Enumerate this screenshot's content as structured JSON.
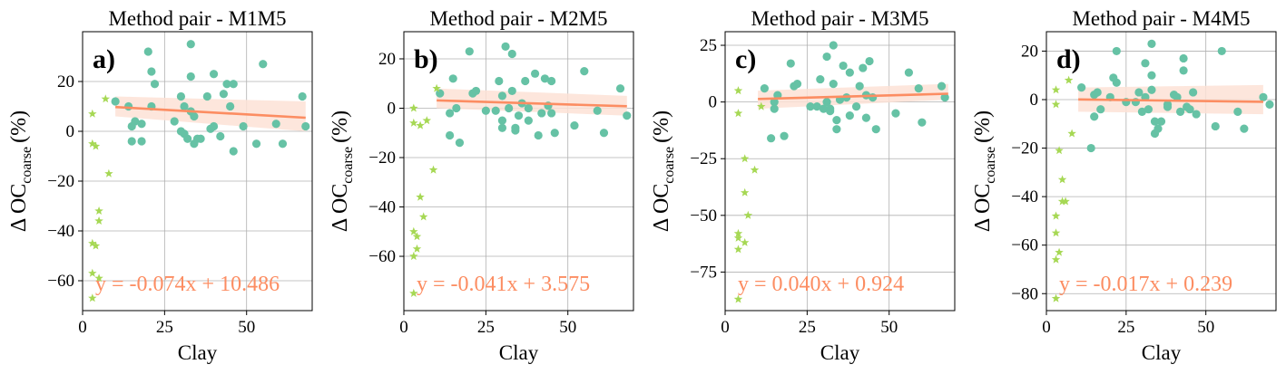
{
  "figure": {
    "colors": {
      "dots": "#66c2a5",
      "stars": "#a6d854",
      "line": "#fc8d62",
      "band": "#fde2d6",
      "grid": "#b0b0b0"
    }
  },
  "chart_data": [
    {
      "type": "scatter",
      "title": "Method pair - M1M5",
      "panel_label": "a)",
      "xlabel": "Clay",
      "ylabel_main": "Δ OC",
      "ylabel_sub": "coarse",
      "ylabel_unit": "(%)",
      "xlim": [
        0,
        70
      ],
      "ylim": [
        -72,
        40
      ],
      "xticks": [
        0,
        25,
        50
      ],
      "yticks": [
        -60,
        -40,
        -20,
        0,
        20
      ],
      "equation": "y = -0.074x + 10.486",
      "fit": {
        "slope": -0.074,
        "intercept": 10.486,
        "x_range": [
          10,
          68
        ],
        "band_low": [
          6,
          0
        ],
        "band_high": [
          14,
          12
        ]
      },
      "grid": true,
      "series": [
        {
          "marker": "dot",
          "points": [
            [
              10,
              12
            ],
            [
              14,
              10
            ],
            [
              15,
              2
            ],
            [
              16,
              4
            ],
            [
              15,
              -4
            ],
            [
              18,
              -4
            ],
            [
              18,
              3
            ],
            [
              20,
              32
            ],
            [
              21,
              24
            ],
            [
              22,
              19
            ],
            [
              21,
              10
            ],
            [
              28,
              4
            ],
            [
              30,
              14
            ],
            [
              30,
              0
            ],
            [
              31,
              -1
            ],
            [
              31,
              10
            ],
            [
              32,
              -3
            ],
            [
              33,
              8
            ],
            [
              33,
              22
            ],
            [
              33,
              35
            ],
            [
              34,
              6
            ],
            [
              34,
              -5
            ],
            [
              35,
              -3
            ],
            [
              36,
              -3
            ],
            [
              38,
              14
            ],
            [
              39,
              1
            ],
            [
              40,
              23
            ],
            [
              40,
              2
            ],
            [
              42,
              -2
            ],
            [
              43,
              15
            ],
            [
              44,
              19
            ],
            [
              45,
              10
            ],
            [
              46,
              19
            ],
            [
              46,
              -8
            ],
            [
              49,
              2
            ],
            [
              53,
              -5
            ],
            [
              55,
              27
            ],
            [
              59,
              3
            ],
            [
              61,
              -5
            ],
            [
              67,
              14
            ],
            [
              68,
              2
            ]
          ]
        },
        {
          "marker": "star",
          "points": [
            [
              3,
              7
            ],
            [
              3,
              -5
            ],
            [
              4,
              -6
            ],
            [
              5,
              -32
            ],
            [
              5,
              -36
            ],
            [
              3,
              -45
            ],
            [
              4,
              -46
            ],
            [
              3,
              -57
            ],
            [
              3,
              -67
            ],
            [
              5,
              -59
            ],
            [
              7,
              13
            ],
            [
              8,
              -17
            ]
          ]
        }
      ]
    },
    {
      "type": "scatter",
      "title": "Method pair - M2M5",
      "panel_label": "b)",
      "xlabel": "Clay",
      "ylabel_main": "Δ OC",
      "ylabel_sub": "coarse",
      "ylabel_unit": "(%)",
      "xlim": [
        0,
        70
      ],
      "ylim": [
        -82,
        31
      ],
      "xticks": [
        0,
        25,
        50
      ],
      "yticks": [
        -60,
        -40,
        -20,
        0,
        20
      ],
      "equation": "y = -0.041x + 3.575",
      "fit": {
        "slope": -0.041,
        "intercept": 3.575,
        "x_range": [
          10,
          68
        ],
        "band_low": [
          0,
          -3
        ],
        "band_high": [
          8,
          5
        ]
      },
      "grid": true,
      "series": [
        {
          "marker": "dot",
          "points": [
            [
              11,
              6
            ],
            [
              14,
              -11
            ],
            [
              14,
              -2
            ],
            [
              15,
              12
            ],
            [
              16,
              0
            ],
            [
              17,
              -14
            ],
            [
              20,
              23
            ],
            [
              21,
              6
            ],
            [
              22,
              7
            ],
            [
              25,
              -1
            ],
            [
              28,
              -1
            ],
            [
              29,
              11
            ],
            [
              30,
              -8
            ],
            [
              30,
              5
            ],
            [
              30,
              -5
            ],
            [
              31,
              25
            ],
            [
              32,
              0
            ],
            [
              33,
              7
            ],
            [
              33,
              22
            ],
            [
              34,
              -9
            ],
            [
              34,
              -8
            ],
            [
              35,
              -3
            ],
            [
              36,
              2
            ],
            [
              37,
              11
            ],
            [
              38,
              0
            ],
            [
              38,
              -5
            ],
            [
              40,
              14
            ],
            [
              41,
              -11
            ],
            [
              42,
              -2
            ],
            [
              43,
              12
            ],
            [
              44,
              1
            ],
            [
              45,
              -2
            ],
            [
              45,
              11
            ],
            [
              46,
              -10
            ],
            [
              52,
              -7
            ],
            [
              55,
              15
            ],
            [
              59,
              -1
            ],
            [
              61,
              -10
            ],
            [
              66,
              8
            ],
            [
              68,
              -3
            ]
          ]
        },
        {
          "marker": "star",
          "points": [
            [
              3,
              0
            ],
            [
              3,
              -6
            ],
            [
              5,
              -7
            ],
            [
              5,
              -36
            ],
            [
              6,
              -44
            ],
            [
              3,
              -50
            ],
            [
              4,
              -52
            ],
            [
              4,
              -57
            ],
            [
              3,
              -60
            ],
            [
              3,
              -75
            ],
            [
              7,
              -5
            ],
            [
              9,
              -25
            ],
            [
              10,
              8
            ]
          ]
        }
      ]
    },
    {
      "type": "scatter",
      "title": "Method pair - M3M5",
      "panel_label": "c)",
      "xlabel": "Clay",
      "ylabel_main": "Δ OC",
      "ylabel_sub": "coarse",
      "ylabel_unit": "(%)",
      "xlim": [
        0,
        70
      ],
      "ylim": [
        -92,
        31
      ],
      "xticks": [
        0,
        25,
        50
      ],
      "yticks": [
        -75,
        -50,
        -25,
        0,
        25
      ],
      "equation": "y = 0.040x + 0.924",
      "fit": {
        "slope": 0.04,
        "intercept": 0.924,
        "x_range": [
          10,
          68
        ],
        "band_low": [
          -3,
          1
        ],
        "band_high": [
          5,
          8
        ]
      },
      "grid": true,
      "series": [
        {
          "marker": "dot",
          "points": [
            [
              12,
              6
            ],
            [
              14,
              -16
            ],
            [
              15,
              -3
            ],
            [
              15,
              0
            ],
            [
              16,
              3
            ],
            [
              18,
              -15
            ],
            [
              20,
              17
            ],
            [
              21,
              7
            ],
            [
              22,
              8
            ],
            [
              26,
              -2
            ],
            [
              28,
              -2
            ],
            [
              29,
              10
            ],
            [
              30,
              -3
            ],
            [
              31,
              20
            ],
            [
              31,
              0
            ],
            [
              32,
              -4
            ],
            [
              32,
              -3
            ],
            [
              33,
              25
            ],
            [
              33,
              8
            ],
            [
              34,
              -12
            ],
            [
              34,
              -8
            ],
            [
              35,
              1
            ],
            [
              36,
              16
            ],
            [
              37,
              2
            ],
            [
              38,
              13
            ],
            [
              38,
              -6
            ],
            [
              40,
              -2
            ],
            [
              41,
              7
            ],
            [
              42,
              15
            ],
            [
              43,
              3
            ],
            [
              43,
              -7
            ],
            [
              44,
              18
            ],
            [
              45,
              2
            ],
            [
              46,
              -12
            ],
            [
              52,
              -5
            ],
            [
              56,
              13
            ],
            [
              59,
              6
            ],
            [
              60,
              -9
            ],
            [
              66,
              7
            ],
            [
              67,
              2
            ]
          ]
        },
        {
          "marker": "star",
          "points": [
            [
              4,
              5
            ],
            [
              4,
              -5
            ],
            [
              4,
              -58
            ],
            [
              4,
              -60
            ],
            [
              4,
              -65
            ],
            [
              4,
              -87
            ],
            [
              6,
              -62
            ],
            [
              6,
              -25
            ],
            [
              6,
              -40
            ],
            [
              7,
              -50
            ],
            [
              9,
              -30
            ],
            [
              11,
              -2
            ]
          ]
        }
      ]
    },
    {
      "type": "scatter",
      "title": "Method pair - M4M5",
      "panel_label": "d)",
      "xlabel": "Clay",
      "ylabel_main": "Δ OC",
      "ylabel_sub": "coarse",
      "ylabel_unit": "(%)",
      "xlim": [
        0,
        72
      ],
      "ylim": [
        -87,
        28
      ],
      "xticks": [
        0,
        25,
        50
      ],
      "yticks": [
        -80,
        -60,
        -40,
        -20,
        0,
        20
      ],
      "equation": "y = -0.017x + 0.239",
      "fit": {
        "slope": -0.017,
        "intercept": 0.239,
        "x_range": [
          10,
          68
        ],
        "band_low": [
          -5,
          -6
        ],
        "band_high": [
          5,
          6
        ]
      },
      "grid": true,
      "series": [
        {
          "marker": "dot",
          "points": [
            [
              11,
              5
            ],
            [
              14,
              -20
            ],
            [
              15,
              2
            ],
            [
              15,
              -7
            ],
            [
              16,
              3
            ],
            [
              17,
              -4
            ],
            [
              20,
              1
            ],
            [
              21,
              9
            ],
            [
              22,
              7
            ],
            [
              22,
              20
            ],
            [
              25,
              -1
            ],
            [
              28,
              -1
            ],
            [
              29,
              3
            ],
            [
              30,
              -5
            ],
            [
              31,
              15
            ],
            [
              31,
              1
            ],
            [
              32,
              -4
            ],
            [
              33,
              4
            ],
            [
              33,
              10
            ],
            [
              33,
              23
            ],
            [
              34,
              -14
            ],
            [
              34,
              -9
            ],
            [
              35,
              -12
            ],
            [
              36,
              -9
            ],
            [
              38,
              -2
            ],
            [
              38,
              -3
            ],
            [
              40,
              2
            ],
            [
              41,
              1
            ],
            [
              42,
              -5
            ],
            [
              43,
              12
            ],
            [
              43,
              17
            ],
            [
              44,
              -3
            ],
            [
              45,
              -4
            ],
            [
              46,
              3
            ],
            [
              47,
              -6
            ],
            [
              53,
              -11
            ],
            [
              55,
              20
            ],
            [
              60,
              -5
            ],
            [
              62,
              -12
            ],
            [
              68,
              1
            ],
            [
              70,
              -2
            ]
          ]
        },
        {
          "marker": "star",
          "points": [
            [
              3,
              4
            ],
            [
              3,
              -2
            ],
            [
              4,
              -21
            ],
            [
              5,
              -33
            ],
            [
              5,
              -42
            ],
            [
              6,
              -42
            ],
            [
              3,
              -48
            ],
            [
              3,
              -55
            ],
            [
              4,
              -63
            ],
            [
              3,
              -66
            ],
            [
              3,
              -82
            ],
            [
              7,
              8
            ],
            [
              8,
              -14
            ]
          ]
        }
      ]
    }
  ]
}
